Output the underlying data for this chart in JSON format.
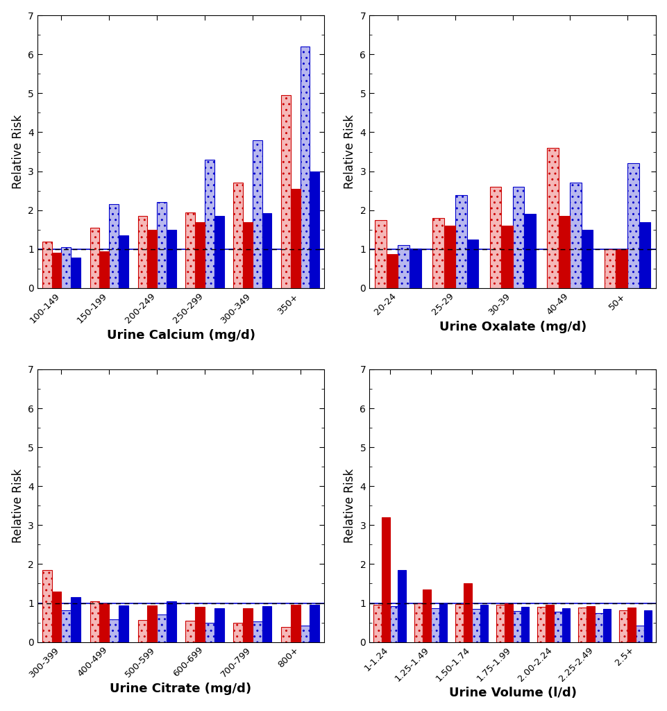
{
  "calcium": {
    "categories": [
      "100-149",
      "150-199",
      "200-249",
      "250-299",
      "300-349",
      "350+"
    ],
    "xlabel": "Urine Calcium (mg/d)",
    "red_open": [
      1.2,
      1.55,
      1.85,
      1.95,
      2.7,
      4.95
    ],
    "red_solid": [
      0.9,
      0.95,
      1.5,
      1.7,
      1.7,
      2.55
    ],
    "blue_open": [
      1.05,
      2.15,
      2.2,
      3.3,
      3.8,
      6.2
    ],
    "blue_solid": [
      0.78,
      1.35,
      1.5,
      1.85,
      1.92,
      3.0
    ]
  },
  "oxalate": {
    "categories": [
      "20-24",
      "25-29",
      "30-39",
      "40-49",
      "50+"
    ],
    "xlabel": "Urine Oxalate (mg/d)",
    "red_open": [
      1.75,
      1.8,
      2.6,
      3.6,
      1.0
    ],
    "red_solid": [
      0.88,
      1.6,
      1.6,
      1.85,
      1.0
    ],
    "blue_open": [
      1.1,
      2.38,
      2.6,
      2.7,
      3.2
    ],
    "blue_solid": [
      1.02,
      1.25,
      1.9,
      1.5,
      1.7
    ]
  },
  "citrate": {
    "categories": [
      "300-399",
      "400-499",
      "500-599",
      "600-699",
      "700-799",
      "800+"
    ],
    "xlabel": "Urine Citrate (mg/d)",
    "red_open": [
      1.85,
      1.05,
      0.57,
      0.55,
      0.5,
      0.38
    ],
    "red_solid": [
      1.3,
      1.0,
      0.93,
      0.9,
      0.87,
      0.95
    ],
    "blue_open": [
      0.82,
      0.58,
      0.7,
      0.5,
      0.52,
      0.42
    ],
    "blue_solid": [
      1.15,
      0.93,
      1.05,
      0.87,
      0.92,
      0.96
    ]
  },
  "volume": {
    "categories": [
      "1-1.24",
      "1.25-1.49",
      "1.50-1.74",
      "1.75-1.99",
      "2.00-2.24",
      "2.25-2.49",
      "2.5+"
    ],
    "xlabel": "Urine Volume (l/d)",
    "red_open": [
      0.95,
      1.0,
      0.97,
      0.95,
      0.9,
      0.88,
      0.82
    ],
    "red_solid": [
      3.2,
      1.35,
      1.5,
      1.0,
      0.95,
      0.92,
      0.88
    ],
    "blue_open": [
      0.92,
      0.87,
      0.85,
      0.8,
      0.77,
      0.75,
      0.42
    ],
    "blue_solid": [
      1.85,
      1.0,
      0.95,
      0.9,
      0.87,
      0.85,
      0.82
    ]
  },
  "ylim": [
    0,
    7
  ],
  "yticks": [
    0,
    1,
    2,
    3,
    4,
    5,
    6,
    7
  ],
  "ylabel": "Relative Risk",
  "bar_width": 0.2,
  "red_solid_color": "#cc0000",
  "red_open_facecolor": "#f5b8b8",
  "red_open_edgecolor": "#cc0000",
  "blue_solid_color": "#0000cc",
  "blue_open_facecolor": "#b8b8ee",
  "blue_open_edgecolor": "#0000cc",
  "ref_line_color": "#0000cc",
  "dashed_line_color": "black"
}
